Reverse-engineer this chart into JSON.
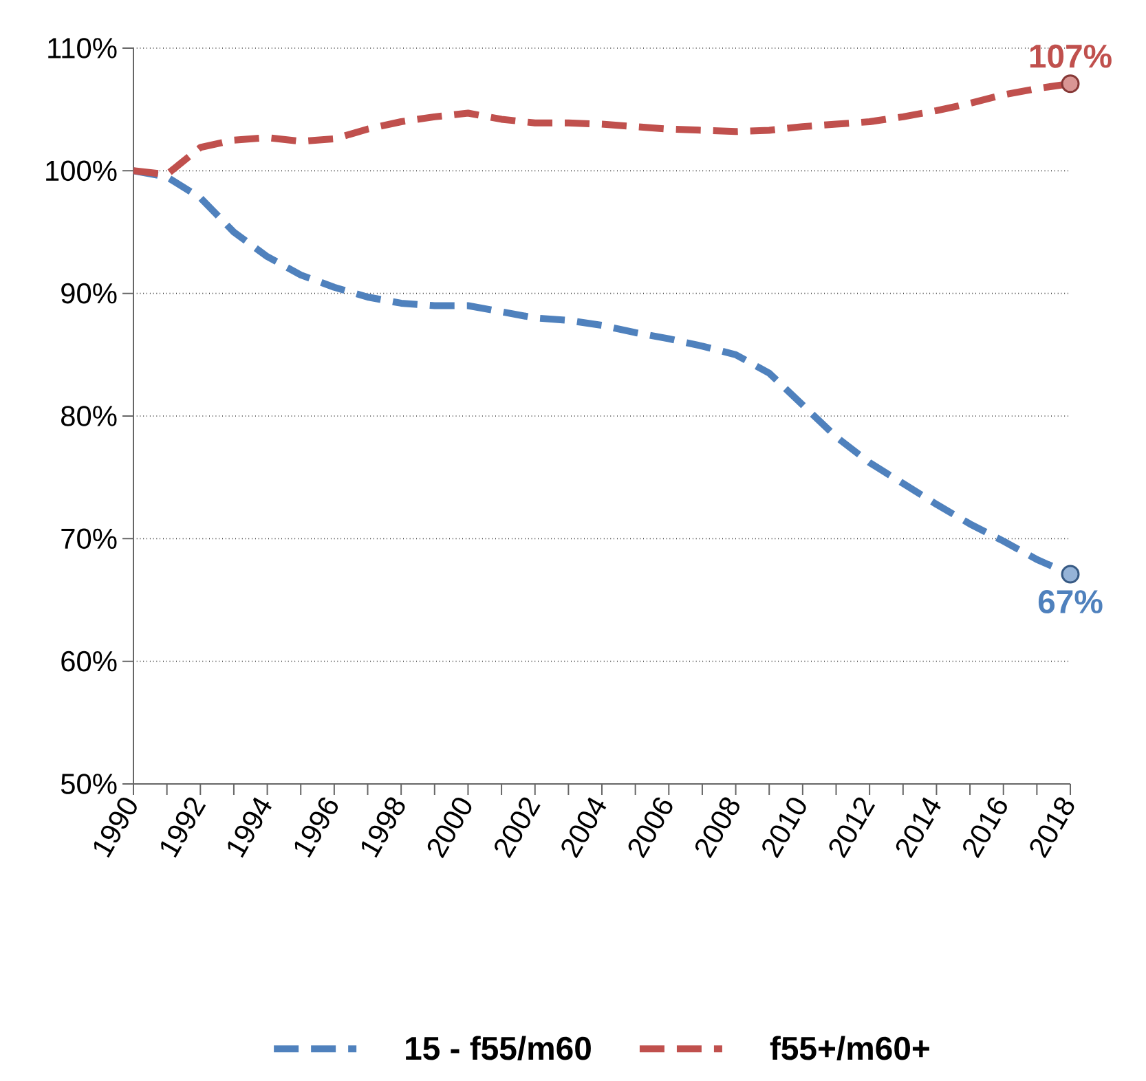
{
  "chart_data": {
    "type": "line",
    "x": [
      1990,
      1991,
      1992,
      1993,
      1994,
      1995,
      1996,
      1997,
      1998,
      1999,
      2000,
      2001,
      2002,
      2003,
      2004,
      2005,
      2006,
      2007,
      2008,
      2009,
      2010,
      2011,
      2012,
      2013,
      2014,
      2015,
      2016,
      2017,
      2018
    ],
    "series": [
      {
        "name": "15 - f55/m60",
        "color": "#4f81bd",
        "values": [
          100,
          99.5,
          97.8,
          95,
          93,
          91.5,
          90.5,
          89.7,
          89.2,
          89.0,
          89.0,
          88.5,
          88.0,
          87.8,
          87.4,
          86.8,
          86.3,
          85.7,
          85.0,
          83.5,
          80.9,
          78.3,
          76.2,
          74.5,
          72.8,
          71.2,
          69.8,
          68.3,
          67.1
        ],
        "value_labels": [
          null,
          null,
          null,
          null,
          null,
          null,
          null,
          null,
          null,
          null,
          null,
          null,
          null,
          null,
          null,
          null,
          null,
          null,
          null,
          null,
          null,
          null,
          null,
          null,
          null,
          null,
          null,
          null,
          "67%"
        ]
      },
      {
        "name": "f55+/m60+",
        "color": "#c0504d",
        "values": [
          100,
          99.7,
          101.9,
          102.5,
          102.7,
          102.4,
          102.6,
          103.4,
          104.0,
          104.4,
          104.7,
          104.2,
          103.9,
          103.9,
          103.8,
          103.6,
          103.4,
          103.3,
          103.2,
          103.3,
          103.6,
          103.8,
          104.0,
          104.4,
          104.9,
          105.5,
          106.2,
          106.7,
          107.1
        ],
        "value_labels": [
          null,
          null,
          null,
          null,
          null,
          null,
          null,
          null,
          null,
          null,
          null,
          null,
          null,
          null,
          null,
          null,
          null,
          null,
          null,
          null,
          null,
          null,
          null,
          null,
          null,
          null,
          null,
          null,
          "107%"
        ]
      }
    ],
    "xlim": [
      1990,
      2018
    ],
    "xticks": [
      1990,
      1992,
      1994,
      1996,
      1998,
      2000,
      2002,
      2004,
      2006,
      2008,
      2010,
      2012,
      2014,
      2016,
      2018
    ],
    "ylim": [
      50,
      110
    ],
    "yticks": [
      {
        "value": 50,
        "label": "50%"
      },
      {
        "value": 60,
        "label": "60%"
      },
      {
        "value": 70,
        "label": "70%"
      },
      {
        "value": 80,
        "label": "80%"
      },
      {
        "value": 90,
        "label": "90%"
      },
      {
        "value": 100,
        "label": "100%"
      },
      {
        "value": 110,
        "label": "110%"
      }
    ],
    "grid": "y",
    "legend": "bottom",
    "line_style": "dashed"
  }
}
